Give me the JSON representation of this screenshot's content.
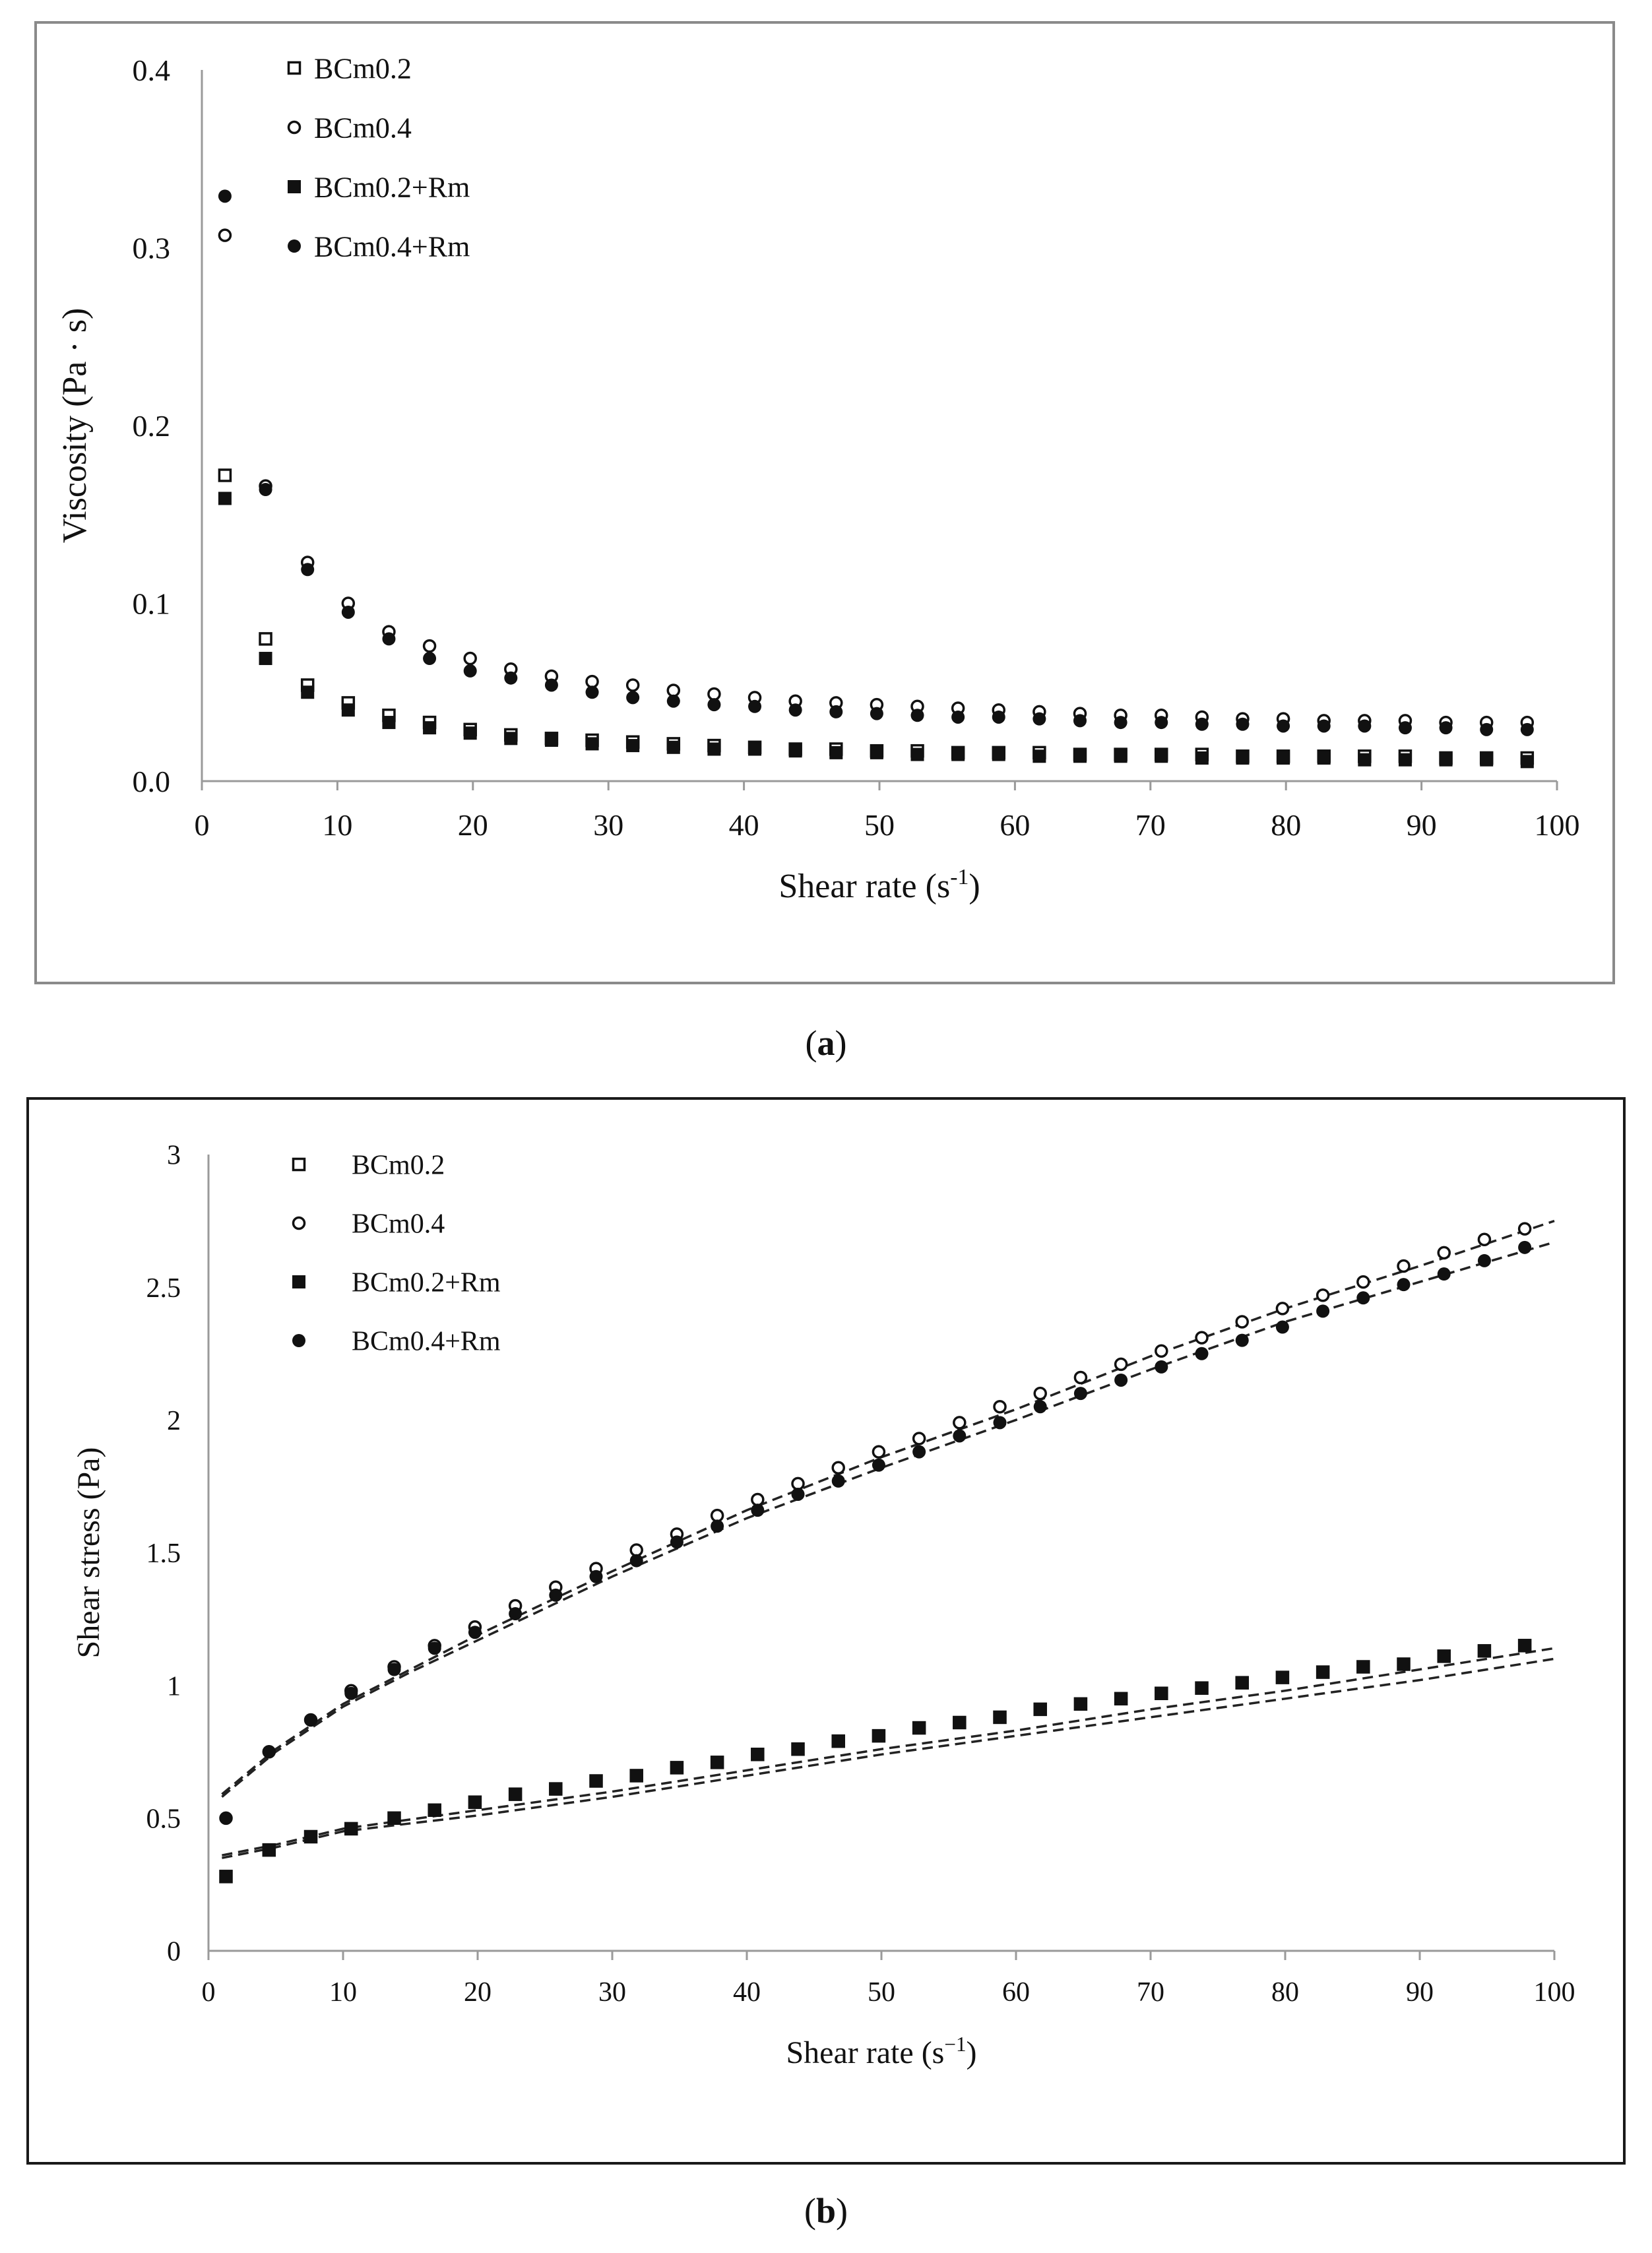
{
  "chart_data": [
    {
      "panel": "a",
      "type": "scatter",
      "caption_letter": "a",
      "title": "",
      "xlabel": "Shear rate (s",
      "xlabel_sup": "-1",
      "xlabel_end": ")",
      "ylabel": "Viscosity (Pa · s)",
      "xlim": [
        0,
        100
      ],
      "ylim": [
        0,
        0.4
      ],
      "xticks": [
        "0",
        "10",
        "20",
        "30",
        "40",
        "50",
        "60",
        "70",
        "80",
        "90",
        "100"
      ],
      "yticks": [
        "0.0",
        "0.1",
        "0.2",
        "0.3",
        "0.4"
      ],
      "xtick_values": [
        0,
        10,
        20,
        30,
        40,
        50,
        60,
        70,
        80,
        90,
        100
      ],
      "ytick_values": [
        0,
        0.1,
        0.2,
        0.3,
        0.4
      ],
      "grid": false,
      "legend_position": "top-left",
      "x": [
        1.7,
        4.7,
        7.8,
        10.8,
        13.8,
        16.8,
        19.8,
        22.8,
        25.8,
        28.8,
        31.8,
        34.8,
        37.8,
        40.8,
        43.8,
        46.8,
        49.8,
        52.8,
        55.8,
        58.8,
        61.8,
        64.8,
        67.8,
        70.8,
        73.8,
        76.8,
        79.8,
        82.8,
        85.8,
        88.8,
        91.8,
        94.8,
        97.8
      ],
      "series": [
        {
          "name": "BCm0.2",
          "marker": "square-open",
          "values": [
            0.172,
            0.08,
            0.054,
            0.044,
            0.037,
            0.033,
            0.029,
            0.026,
            0.024,
            0.023,
            0.022,
            0.021,
            0.02,
            0.019,
            0.018,
            0.018,
            0.017,
            0.017,
            0.016,
            0.016,
            0.016,
            0.015,
            0.015,
            0.015,
            0.015,
            0.014,
            0.014,
            0.014,
            0.014,
            0.014,
            0.013,
            0.013,
            0.013
          ]
        },
        {
          "name": "BCm0.4",
          "marker": "circle-open",
          "values": [
            0.307,
            0.166,
            0.123,
            0.1,
            0.084,
            0.076,
            0.069,
            0.063,
            0.059,
            0.056,
            0.054,
            0.051,
            0.049,
            0.047,
            0.045,
            0.044,
            0.043,
            0.042,
            0.041,
            0.04,
            0.039,
            0.038,
            0.037,
            0.037,
            0.036,
            0.035,
            0.035,
            0.034,
            0.034,
            0.034,
            0.033,
            0.033,
            0.033
          ]
        },
        {
          "name": "BCm0.2+Rm",
          "marker": "square-filled",
          "values": [
            0.159,
            0.069,
            0.05,
            0.04,
            0.033,
            0.03,
            0.027,
            0.024,
            0.023,
            0.021,
            0.02,
            0.019,
            0.018,
            0.018,
            0.017,
            0.016,
            0.016,
            0.015,
            0.015,
            0.015,
            0.014,
            0.014,
            0.014,
            0.014,
            0.013,
            0.013,
            0.013,
            0.013,
            0.012,
            0.012,
            0.012,
            0.012,
            0.011
          ]
        },
        {
          "name": "BCm0.4+Rm",
          "marker": "circle-filled",
          "values": [
            0.329,
            0.164,
            0.119,
            0.095,
            0.08,
            0.069,
            0.062,
            0.058,
            0.054,
            0.05,
            0.047,
            0.045,
            0.043,
            0.042,
            0.04,
            0.039,
            0.038,
            0.037,
            0.036,
            0.036,
            0.035,
            0.034,
            0.033,
            0.033,
            0.032,
            0.032,
            0.031,
            0.031,
            0.031,
            0.03,
            0.03,
            0.029,
            0.029
          ]
        }
      ]
    },
    {
      "panel": "b",
      "type": "scatter",
      "caption_letter": "b",
      "title": "",
      "xlabel": "Shear rate (s",
      "xlabel_sup": "−1",
      "xlabel_end": ")",
      "ylabel": "Shear stress (Pa)",
      "xlim": [
        0,
        100
      ],
      "ylim": [
        0,
        3
      ],
      "xticks": [
        "0",
        "10",
        "20",
        "30",
        "40",
        "50",
        "60",
        "70",
        "80",
        "90",
        "100"
      ],
      "yticks": [
        "0",
        "0.5",
        "1",
        "1.5",
        "2",
        "2.5",
        "3"
      ],
      "xtick_values": [
        0,
        10,
        20,
        30,
        40,
        50,
        60,
        70,
        80,
        90,
        100
      ],
      "ytick_values": [
        0,
        0.5,
        1,
        1.5,
        2,
        2.5,
        3
      ],
      "grid": false,
      "legend_position": "top-left",
      "x": [
        1.3,
        4.5,
        7.6,
        10.6,
        13.8,
        16.8,
        19.8,
        22.8,
        25.8,
        28.8,
        31.8,
        34.8,
        37.8,
        40.8,
        43.8,
        46.8,
        49.8,
        52.8,
        55.8,
        58.8,
        61.8,
        64.8,
        67.8,
        70.8,
        73.8,
        76.8,
        79.8,
        82.8,
        85.8,
        88.8,
        91.8,
        94.8,
        97.8
      ],
      "series": [
        {
          "name": "BCm0.2",
          "marker": "square-open",
          "values": [
            0.28,
            0.38,
            0.43,
            0.46,
            0.5,
            0.53,
            0.56,
            0.59,
            0.61,
            0.64,
            0.66,
            0.69,
            0.71,
            0.74,
            0.76,
            0.79,
            0.81,
            0.84,
            0.86,
            0.88,
            0.91,
            0.93,
            0.95,
            0.97,
            0.99,
            1.01,
            1.03,
            1.05,
            1.07,
            1.08,
            1.11,
            1.13,
            1.15
          ]
        },
        {
          "name": "BCm0.4",
          "marker": "circle-open",
          "values": [
            0.5,
            0.75,
            0.87,
            0.98,
            1.07,
            1.15,
            1.22,
            1.3,
            1.37,
            1.44,
            1.51,
            1.57,
            1.64,
            1.7,
            1.76,
            1.82,
            1.88,
            1.93,
            1.99,
            2.05,
            2.1,
            2.16,
            2.21,
            2.26,
            2.31,
            2.37,
            2.42,
            2.47,
            2.52,
            2.58,
            2.63,
            2.68,
            2.72
          ]
        },
        {
          "name": "BCm0.2+Rm",
          "marker": "square-filled",
          "values": [
            0.28,
            0.38,
            0.43,
            0.46,
            0.5,
            0.53,
            0.56,
            0.59,
            0.61,
            0.64,
            0.66,
            0.69,
            0.71,
            0.74,
            0.76,
            0.79,
            0.81,
            0.84,
            0.86,
            0.88,
            0.91,
            0.93,
            0.95,
            0.97,
            0.99,
            1.01,
            1.03,
            1.05,
            1.07,
            1.08,
            1.11,
            1.13,
            1.15
          ]
        },
        {
          "name": "BCm0.4+Rm",
          "marker": "circle-filled",
          "values": [
            0.5,
            0.75,
            0.87,
            0.97,
            1.06,
            1.14,
            1.2,
            1.27,
            1.34,
            1.41,
            1.47,
            1.54,
            1.6,
            1.66,
            1.72,
            1.77,
            1.83,
            1.88,
            1.94,
            1.99,
            2.05,
            2.1,
            2.15,
            2.2,
            2.25,
            2.3,
            2.35,
            2.41,
            2.46,
            2.51,
            2.55,
            2.6,
            2.65
          ]
        }
      ],
      "fit_lines": [
        {
          "name": "fit-BCm0.4",
          "style": "dashed",
          "x": [
            1,
            5,
            10,
            15,
            20,
            30,
            40,
            50,
            60,
            70,
            80,
            90,
            100
          ],
          "values": [
            0.59,
            0.76,
            0.93,
            1.06,
            1.19,
            1.43,
            1.66,
            1.86,
            2.04,
            2.24,
            2.42,
            2.58,
            2.75
          ]
        },
        {
          "name": "fit-BCm0.4+Rm",
          "style": "dashed",
          "x": [
            1,
            5,
            10,
            15,
            20,
            30,
            40,
            50,
            60,
            70,
            80,
            90,
            100
          ],
          "values": [
            0.58,
            0.75,
            0.92,
            1.05,
            1.17,
            1.41,
            1.63,
            1.82,
            2.0,
            2.19,
            2.37,
            2.52,
            2.67
          ]
        },
        {
          "name": "fit-BCm0.2",
          "style": "dashed",
          "x": [
            1,
            5,
            10,
            20,
            30,
            40,
            50,
            60,
            70,
            80,
            90,
            100
          ],
          "values": [
            0.36,
            0.4,
            0.46,
            0.53,
            0.6,
            0.68,
            0.76,
            0.83,
            0.91,
            0.98,
            1.06,
            1.14
          ]
        },
        {
          "name": "fit-BCm0.2+Rm",
          "style": "dashed",
          "x": [
            1,
            5,
            10,
            20,
            30,
            40,
            50,
            60,
            70,
            80,
            90,
            100
          ],
          "values": [
            0.35,
            0.39,
            0.45,
            0.51,
            0.58,
            0.66,
            0.74,
            0.81,
            0.88,
            0.95,
            1.02,
            1.1
          ]
        }
      ]
    }
  ]
}
